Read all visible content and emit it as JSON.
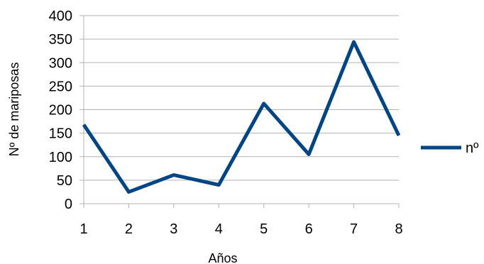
{
  "chart_data": {
    "type": "line",
    "x": [
      1,
      2,
      3,
      4,
      5,
      6,
      7,
      8
    ],
    "series": [
      {
        "name": "nº",
        "values": [
          168,
          25,
          61,
          40,
          213,
          105,
          344,
          145
        ]
      }
    ],
    "title": "",
    "xlabel": "Años",
    "ylabel": "Nº de mariposas",
    "ylim": [
      0,
      400
    ],
    "yticks": [
      "0",
      "50",
      "100",
      "150",
      "200",
      "250",
      "300",
      "350",
      "400"
    ],
    "xticks": [
      "1",
      "2",
      "3",
      "4",
      "5",
      "6",
      "7",
      "8"
    ],
    "grid": "horizontal",
    "legend_position": "right",
    "colors": {
      "series": "#004586",
      "grid": "#b3b3b3",
      "axis": "#b3b3b3"
    }
  }
}
